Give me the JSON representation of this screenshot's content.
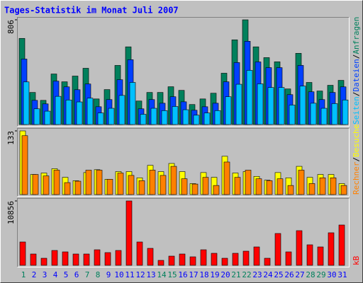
{
  "chart_data": [
    {
      "type": "bar",
      "title": "Tages-Statistik im Monat Juli 2007",
      "ylim": [
        0,
        806
      ],
      "yticks": [
        806
      ],
      "legend_separator": "/",
      "series": [
        {
          "name": "Anfragen",
          "color": "#00805c",
          "values": [
            663,
            247,
            186,
            389,
            329,
            373,
            433,
            197,
            269,
            455,
            598,
            181,
            247,
            247,
            291,
            263,
            154,
            197,
            241,
            395,
            652,
            806,
            598,
            515,
            483,
            274,
            548,
            324,
            258,
            302,
            340
          ]
        },
        {
          "name": "Dateien",
          "color": "#0040ff",
          "values": [
            504,
            186,
            159,
            334,
            290,
            268,
            312,
            137,
            192,
            345,
            499,
            121,
            192,
            164,
            214,
            175,
            110,
            137,
            164,
            329,
            477,
            641,
            482,
            438,
            438,
            230,
            455,
            252,
            192,
            247,
            290
          ]
        },
        {
          "name": "Seiten",
          "color": "#00c0ff",
          "values": [
            328,
            121,
            103,
            217,
            189,
            174,
            203,
            89,
            125,
            224,
            324,
            79,
            125,
            107,
            139,
            114,
            72,
            89,
            107,
            214,
            310,
            417,
            313,
            285,
            285,
            150,
            296,
            164,
            125,
            161,
            189
          ]
        }
      ]
    },
    {
      "type": "bar",
      "ylim": [
        0,
        133
      ],
      "yticks": [
        133
      ],
      "legend_separator": "/",
      "series": [
        {
          "name": "Besuche",
          "color": "#ffff00",
          "values": [
            133,
            42,
            45,
            54,
            36,
            29,
            46,
            52,
            32,
            48,
            48,
            35,
            61,
            48,
            65,
            48,
            23,
            46,
            36,
            80,
            45,
            48,
            38,
            30,
            46,
            35,
            59,
            36,
            42,
            42,
            23
          ]
        },
        {
          "name": "Rechner",
          "color": "#ff8000",
          "values": [
            123,
            42,
            39,
            51,
            25,
            28,
            51,
            51,
            32,
            45,
            40,
            29,
            51,
            40,
            59,
            33,
            22,
            36,
            19,
            68,
            36,
            51,
            33,
            29,
            33,
            19,
            51,
            23,
            35,
            35,
            19
          ]
        }
      ]
    },
    {
      "type": "bar",
      "ylim": [
        0,
        10856
      ],
      "yticks": [
        10856
      ],
      "categories": [
        "1",
        "2",
        "3",
        "4",
        "5",
        "6",
        "7",
        "8",
        "9",
        "10",
        "11",
        "12",
        "13",
        "14",
        "15",
        "16",
        "17",
        "18",
        "19",
        "20",
        "21",
        "22",
        "23",
        "24",
        "25",
        "26",
        "27",
        "28",
        "29",
        "30",
        "31"
      ],
      "category_colors": [
        "#00805c",
        "#0000ff",
        "#0000ff",
        "#0000ff",
        "#0000ff",
        "#0000ff",
        "#00805c",
        "#00805c",
        "#0000ff",
        "#0000ff",
        "#0000ff",
        "#0000ff",
        "#0000ff",
        "#00805c",
        "#00805c",
        "#0000ff",
        "#0000ff",
        "#0000ff",
        "#0000ff",
        "#0000ff",
        "#00805c",
        "#00805c",
        "#0000ff",
        "#0000ff",
        "#0000ff",
        "#0000ff",
        "#0000ff",
        "#00805c",
        "#00805c",
        "#0000ff",
        "#0000ff"
      ],
      "series": [
        {
          "name": "kB",
          "color": "#ff0000",
          "values": [
            3937,
            1909,
            1193,
            2505,
            2267,
            1909,
            1909,
            2624,
            2147,
            2505,
            10856,
            3937,
            2863,
            835,
            1551,
            1909,
            1432,
            2624,
            2028,
            1193,
            2028,
            2386,
            3102,
            1193,
            5368,
            2267,
            5845,
            3460,
            3102,
            5488,
            6800
          ]
        }
      ]
    }
  ]
}
